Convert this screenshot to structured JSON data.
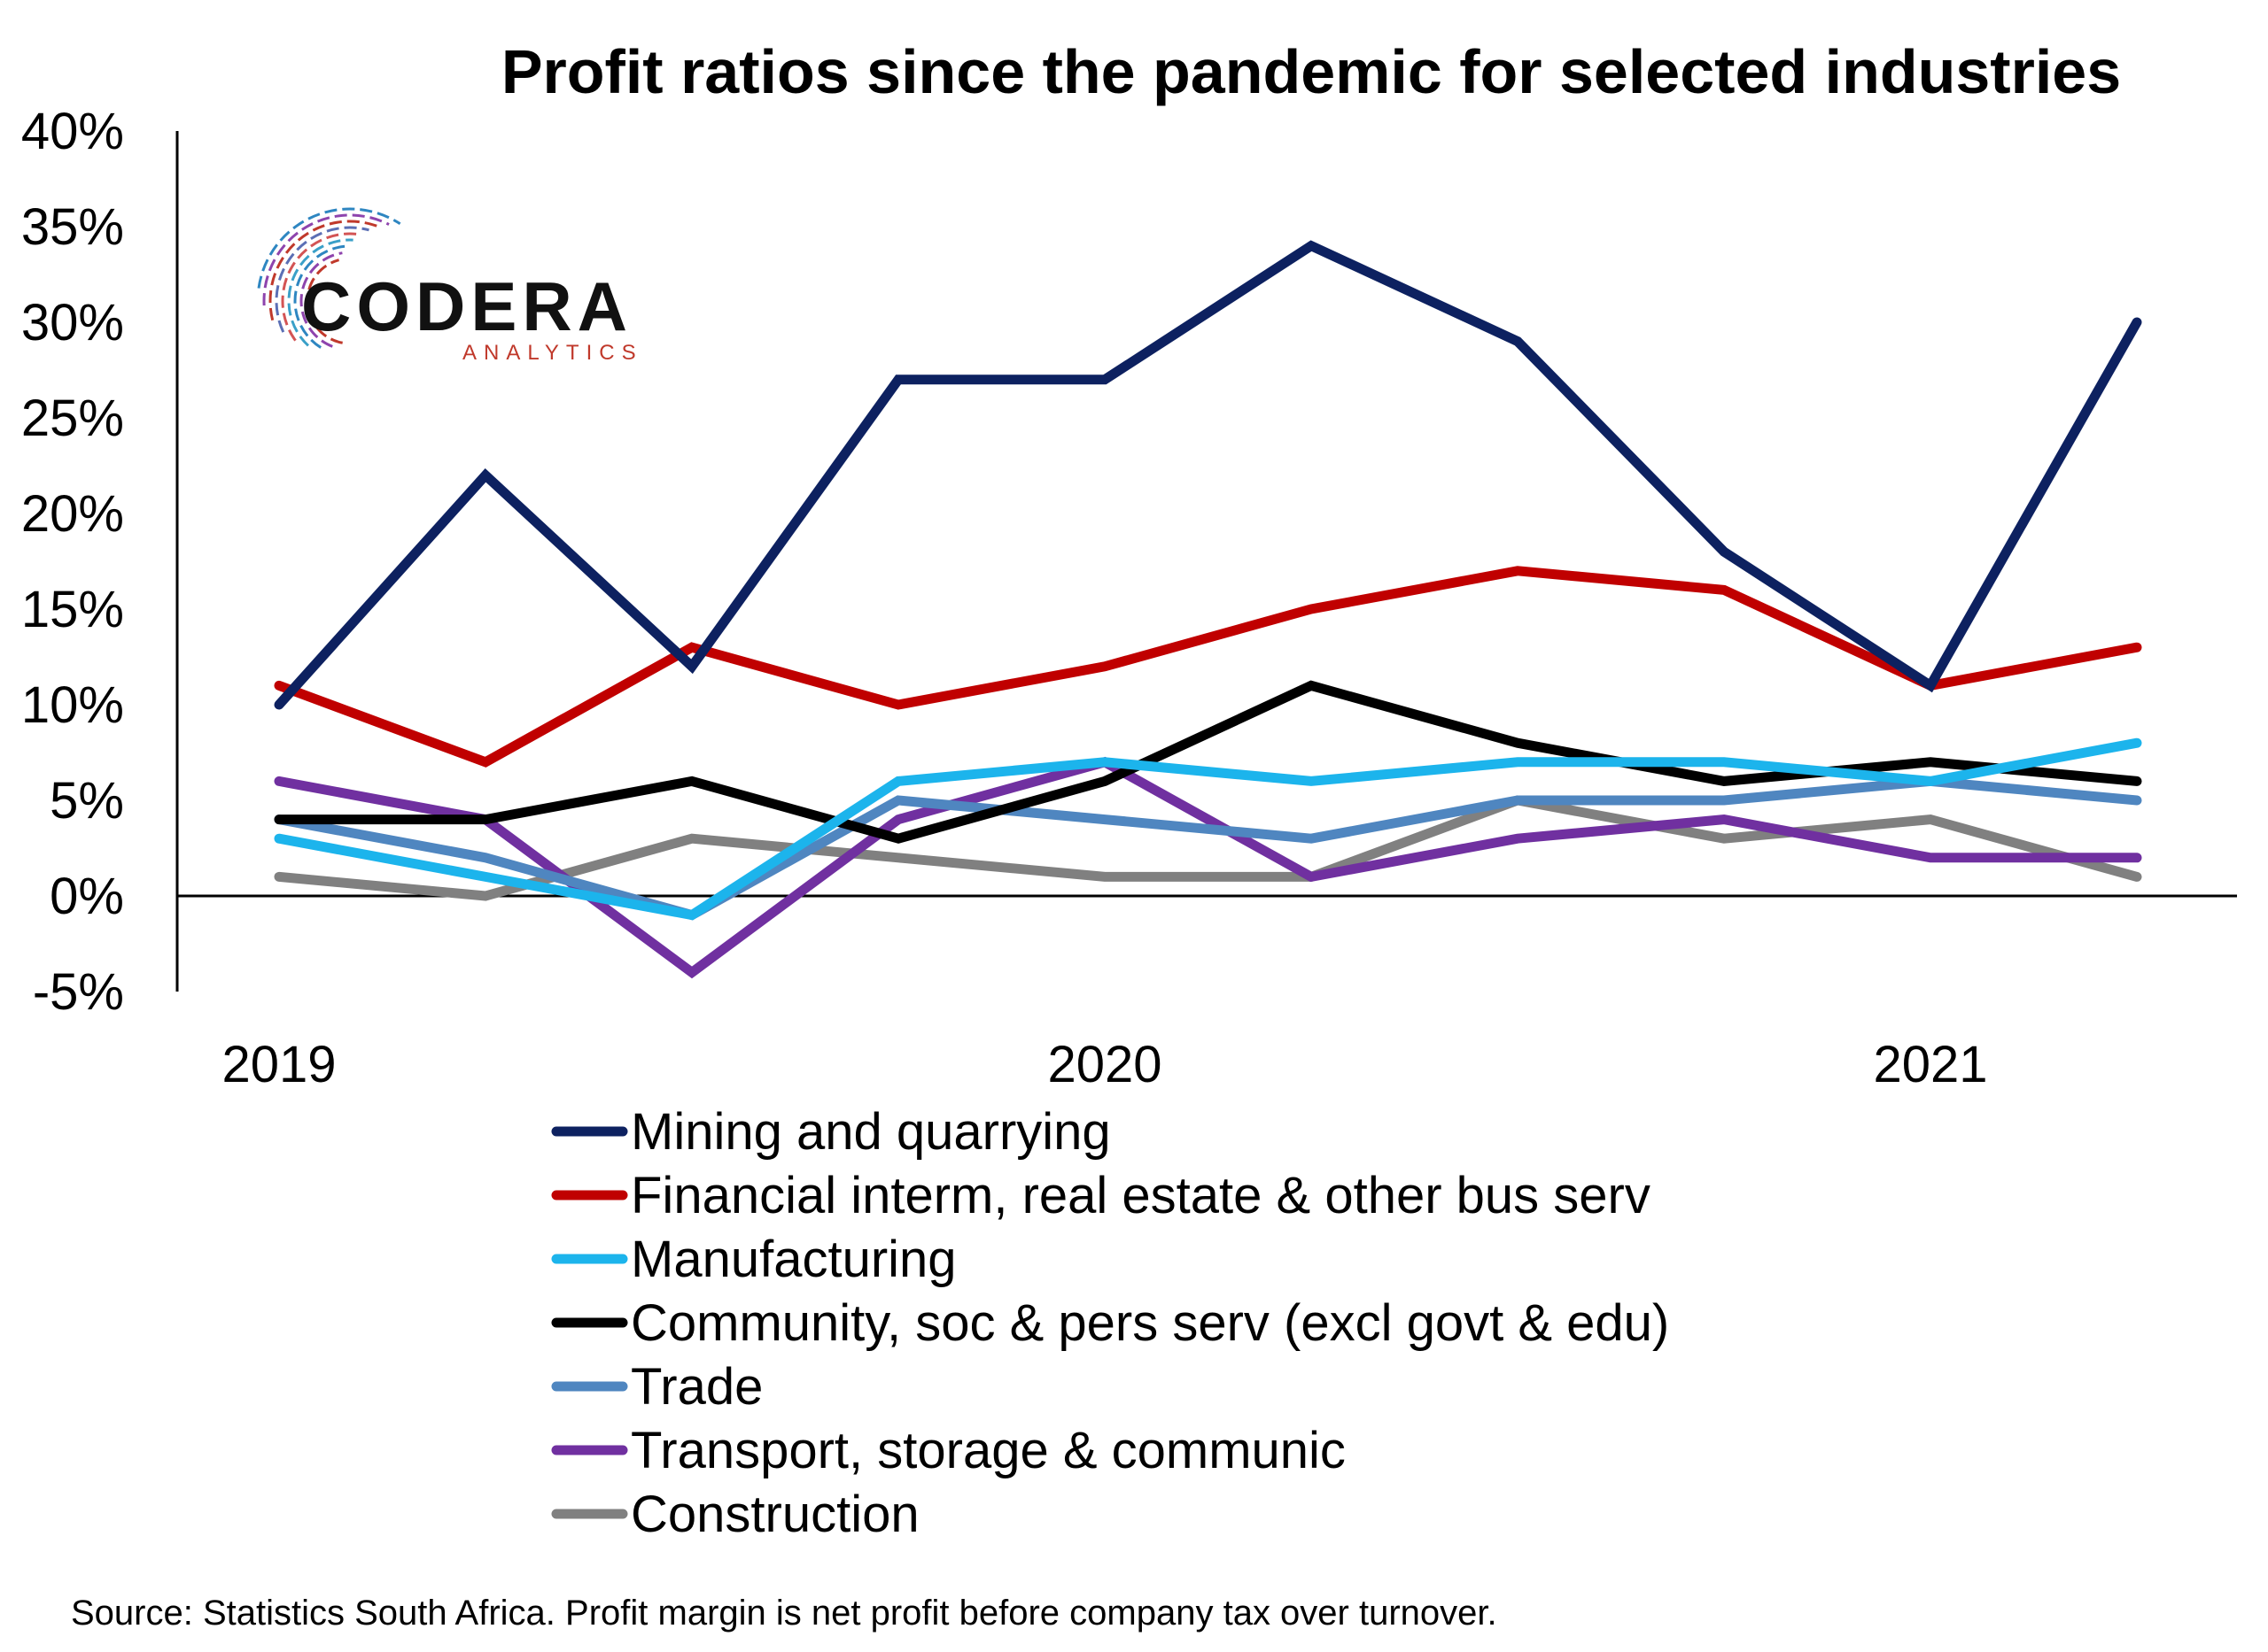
{
  "chart_data": {
    "type": "line",
    "title": "Profit ratios since the pandemic for selected industries",
    "x": [
      "2019Q1",
      "2019Q2",
      "2019Q3",
      "2019Q4",
      "2020Q1",
      "2020Q2",
      "2020Q3",
      "2020Q4",
      "2021Q1",
      "2021Q2"
    ],
    "x_tick_labels": [
      {
        "index": 0,
        "label": "2019"
      },
      {
        "index": 4,
        "label": "2020"
      },
      {
        "index": 8,
        "label": "2021"
      }
    ],
    "y_ticks": [
      "40%",
      "35%",
      "30%",
      "25%",
      "20%",
      "15%",
      "10%",
      "5%",
      "0%",
      "-5%"
    ],
    "y_tick_values": [
      40,
      35,
      30,
      25,
      20,
      15,
      10,
      5,
      0,
      -5
    ],
    "ylim": [
      -5,
      40
    ],
    "grid": false,
    "legend_position": "bottom",
    "series": [
      {
        "name": "Mining and quarrying",
        "color": "#0d2160",
        "values": [
          10,
          22,
          12,
          27,
          27,
          34,
          29,
          18,
          11,
          30
        ]
      },
      {
        "name": "Financial interm, real estate & other bus serv",
        "color": "#c00000",
        "values": [
          11,
          7,
          13,
          10,
          12,
          15,
          17,
          16,
          11,
          13
        ]
      },
      {
        "name": "Manufacturing",
        "color": "#1cb4ec",
        "values": [
          3,
          1,
          -1,
          6,
          7,
          6,
          7,
          7,
          6,
          8
        ]
      },
      {
        "name": "Community, soc & pers serv  (excl  govt & edu)",
        "color": "#000000",
        "values": [
          4,
          4,
          6,
          3,
          6,
          11,
          8,
          6,
          7,
          6
        ]
      },
      {
        "name": "Trade",
        "color": "#4f86c0",
        "values": [
          4,
          2,
          -1,
          5,
          4,
          3,
          5,
          5,
          6,
          5
        ]
      },
      {
        "name": "Transport, storage & communic",
        "color": "#7030a0",
        "values": [
          6,
          4,
          -4,
          4,
          7,
          1,
          3,
          4,
          2,
          2
        ]
      },
      {
        "name": "Construction",
        "color": "#808080",
        "values": [
          1,
          0,
          3,
          2,
          1,
          1,
          5,
          3,
          4,
          1
        ]
      }
    ]
  },
  "logo": {
    "name": "CODERA",
    "sub": "ANALYTICS",
    "accent_red": "#c0392b",
    "accent_blue": "#3aa0c8"
  },
  "source": "Source: Statistics South Africa. Profit margin is net profit before company tax over turnover."
}
